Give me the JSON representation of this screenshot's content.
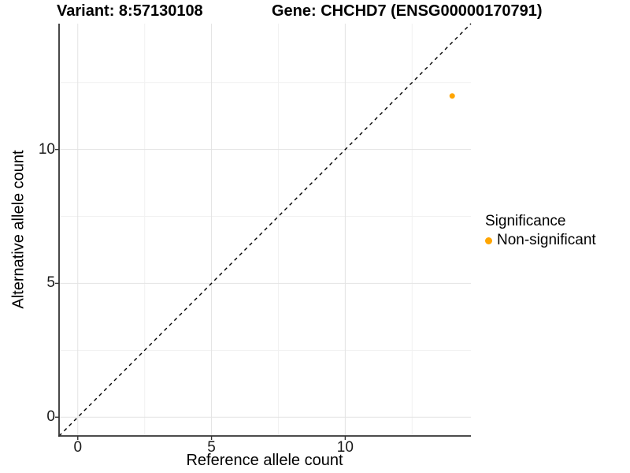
{
  "title": {
    "variant": "Variant: 8:57130108",
    "gene": "Gene: CHCHD7 (ENSG00000170791)"
  },
  "axes": {
    "x_label": "Reference allele count",
    "y_label": "Alternative allele count"
  },
  "legend": {
    "title": "Significance",
    "entries": [
      {
        "label": "Non-significant",
        "color": "#FFA500"
      }
    ]
  },
  "chart_data": {
    "type": "scatter",
    "title": "Variant: 8:57130108    Gene: CHCHD7 (ENSG00000170791)",
    "xlabel": "Reference allele count",
    "ylabel": "Alternative allele count",
    "xlim": [
      -0.7,
      14.7
    ],
    "ylim": [
      -0.7,
      14.7
    ],
    "x_ticks": [
      0,
      5,
      10
    ],
    "y_ticks": [
      0,
      5,
      10
    ],
    "x_minor_ticks": [
      2.5,
      7.5,
      12.5
    ],
    "y_minor_ticks": [
      2.5,
      7.5,
      12.5
    ],
    "grid": "on",
    "legend_position": "right",
    "series": [
      {
        "name": "Non-significant",
        "color": "#FFA500",
        "points": [
          {
            "x": 14,
            "y": 12
          }
        ]
      }
    ],
    "reference_line": {
      "type": "identity",
      "slope": 1,
      "intercept": 0,
      "style": "dashed",
      "color": "#000000"
    }
  }
}
